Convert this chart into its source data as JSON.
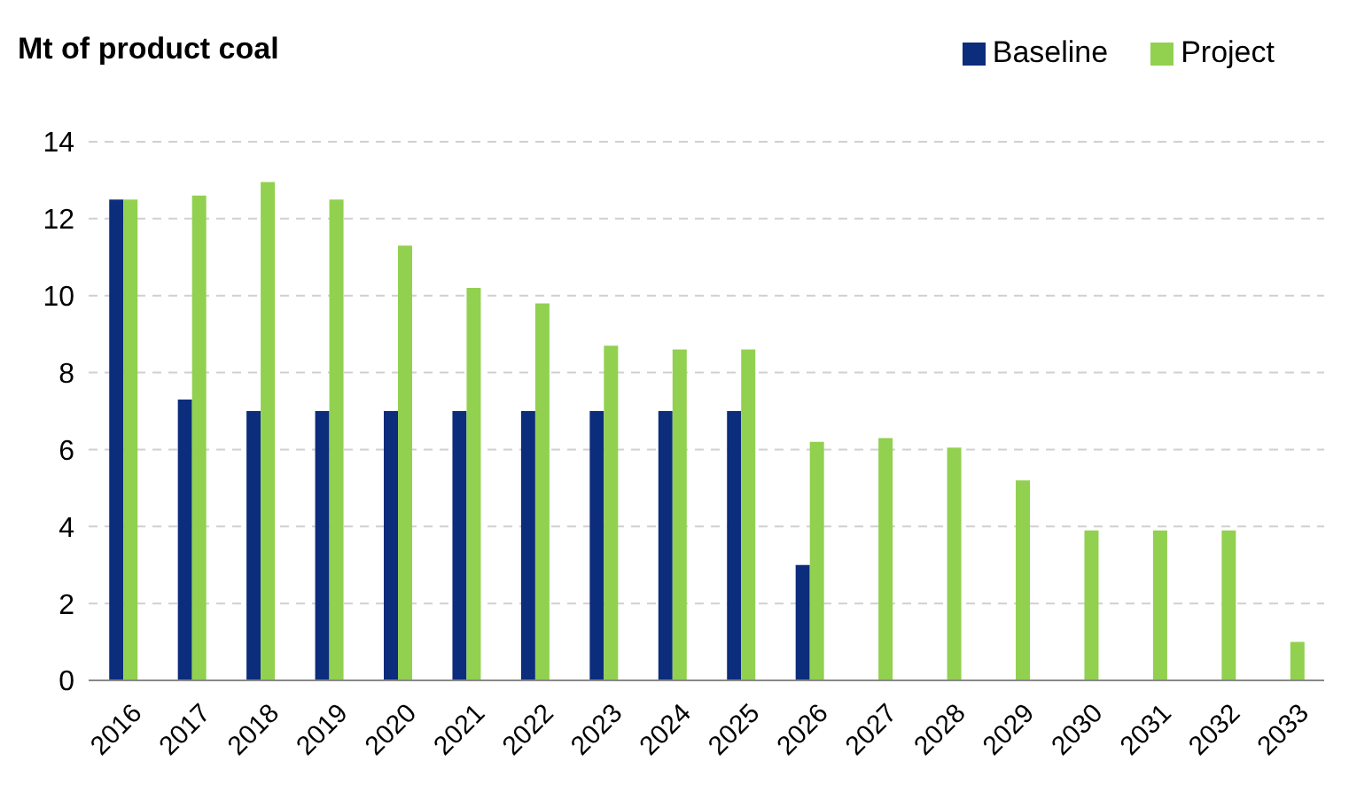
{
  "chart_data": {
    "type": "bar",
    "ylabel": "Mt of product coal",
    "categories": [
      "2016",
      "2017",
      "2018",
      "2019",
      "2020",
      "2021",
      "2022",
      "2023",
      "2024",
      "2025",
      "2026",
      "2027",
      "2028",
      "2029",
      "2030",
      "2031",
      "2032",
      "2033"
    ],
    "series": [
      {
        "name": "Baseline",
        "color": "#0c2c7c",
        "values": [
          12.5,
          7.3,
          7,
          7,
          7,
          7,
          7,
          7,
          7,
          7,
          3,
          null,
          null,
          null,
          null,
          null,
          null,
          null
        ]
      },
      {
        "name": "Project",
        "color": "#92d050",
        "values": [
          12.5,
          12.6,
          12.95,
          12.5,
          11.3,
          10.2,
          9.8,
          8.7,
          8.6,
          8.6,
          6.2,
          6.3,
          6.05,
          5.2,
          3.9,
          3.9,
          3.9,
          1
        ]
      }
    ],
    "ylim": [
      0,
      14
    ],
    "yticks": [
      0,
      2,
      4,
      6,
      8,
      10,
      12,
      14
    ],
    "grid": "y",
    "legend": "top right"
  }
}
